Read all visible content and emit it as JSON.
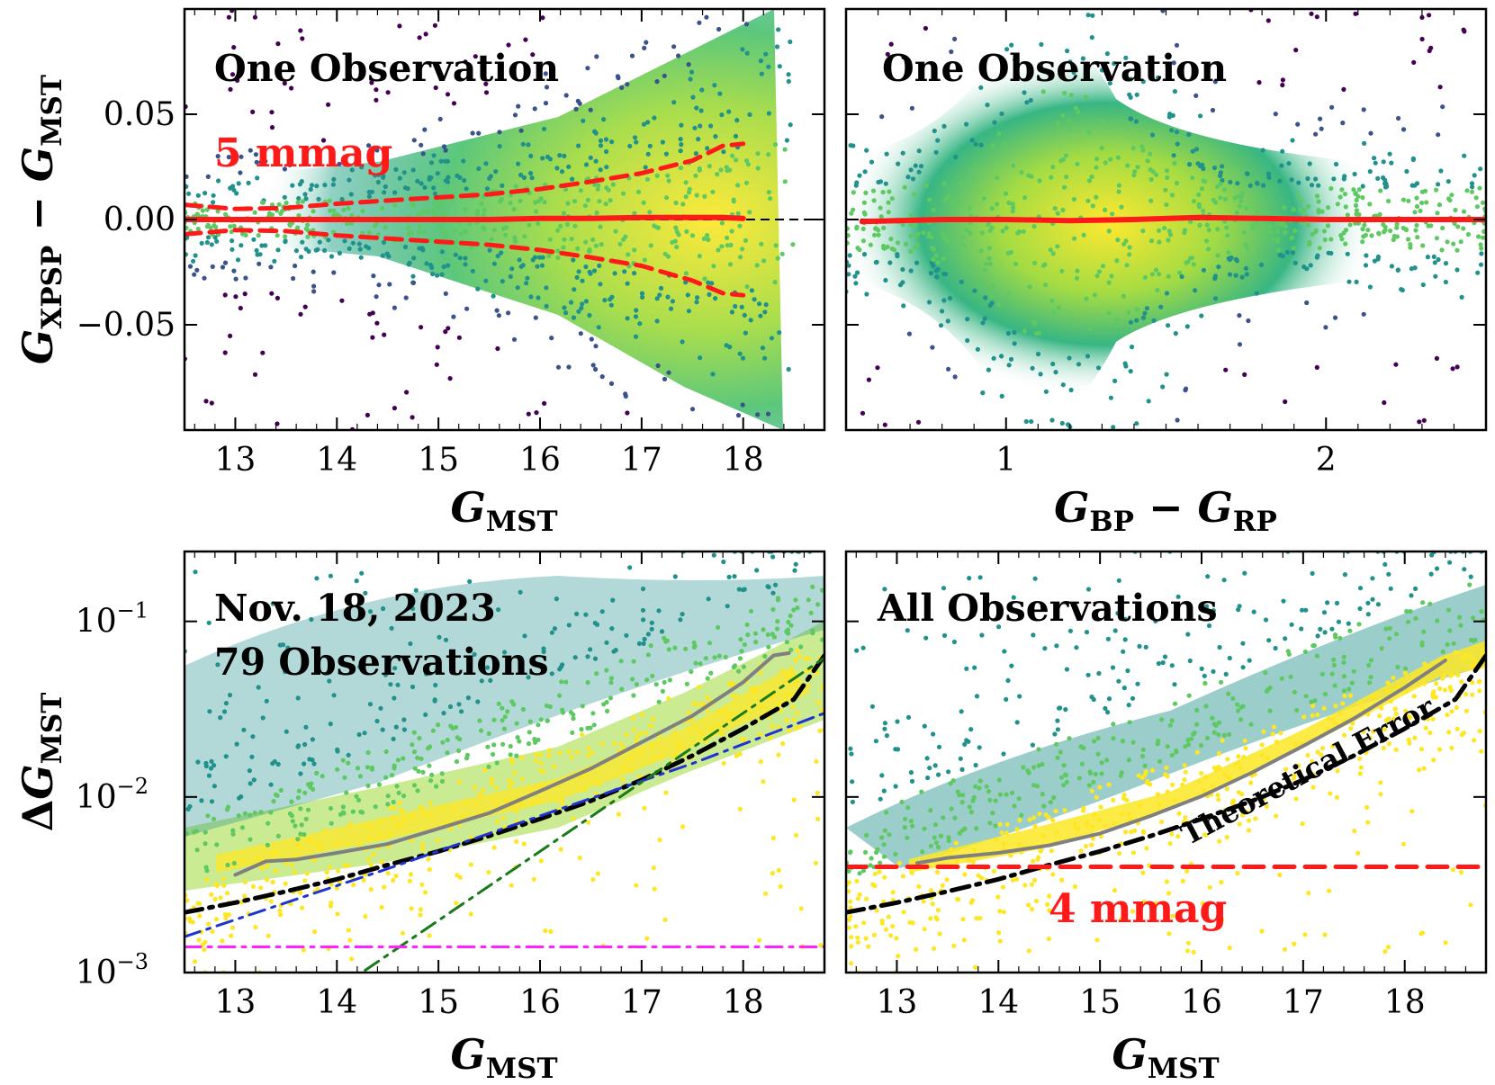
{
  "colors": {
    "median": "#ff1a1a",
    "band": "#ff1a1a",
    "zero": "#000000",
    "theory": "#000000",
    "photon": "#1f33d1",
    "background": "#1a7a1a",
    "floor": "#ff22ff",
    "running": "#808080",
    "ref": "#ff1a1a",
    "density": [
      "#440154",
      "#3b528b",
      "#21918c",
      "#5ec962",
      "#fde725"
    ]
  },
  "chart_data": [
    {
      "id": "a",
      "type": "scatter",
      "annotation": "One Observation",
      "band_label": "5 mmag",
      "xlabel": "G_MST",
      "ylabel": "G_XPSP − G_MST",
      "xlim": [
        12.5,
        18.8
      ],
      "ylim": [
        -0.1,
        0.1
      ],
      "xticks": [
        {
          "v": 13,
          "label": "13"
        },
        {
          "v": 14,
          "label": "14"
        },
        {
          "v": 15,
          "label": "15"
        },
        {
          "v": 16,
          "label": "16"
        },
        {
          "v": 17,
          "label": "17"
        },
        {
          "v": 18,
          "label": "18"
        }
      ],
      "yticks": [
        {
          "v": 0.05,
          "label": "0.05"
        },
        {
          "v": 0.0,
          "label": "0.00"
        },
        {
          "v": -0.05,
          "label": "−0.05"
        }
      ],
      "series": [
        {
          "role": "median",
          "x": [
            12.5,
            13,
            13.5,
            14,
            14.5,
            15,
            15.5,
            16,
            16.5,
            17,
            17.5,
            17.8,
            18.0
          ],
          "y": [
            0.0,
            0.0,
            0.0,
            0.0,
            0.0,
            0.0,
            0.0,
            0.0005,
            0.0005,
            0.001,
            0.001,
            0.001,
            0.0005
          ]
        },
        {
          "role": "upper",
          "x": [
            12.5,
            13,
            13.5,
            14,
            14.5,
            15,
            15.5,
            16,
            16.5,
            17,
            17.5,
            17.8,
            18.0
          ],
          "y": [
            0.007,
            0.005,
            0.0055,
            0.0075,
            0.009,
            0.0105,
            0.012,
            0.0145,
            0.018,
            0.022,
            0.028,
            0.035,
            0.036
          ]
        },
        {
          "role": "lower",
          "x": [
            12.5,
            13,
            13.5,
            14,
            14.5,
            15,
            15.5,
            16,
            16.5,
            17,
            17.5,
            17.8,
            18.0
          ],
          "y": [
            -0.007,
            -0.005,
            -0.0055,
            -0.0075,
            -0.009,
            -0.0105,
            -0.012,
            -0.0145,
            -0.018,
            -0.022,
            -0.029,
            -0.035,
            -0.036
          ]
        }
      ]
    },
    {
      "id": "b",
      "type": "scatter",
      "annotation": "One Observation",
      "xlabel": "G_BP − G_RP",
      "xlim": [
        0.5,
        2.5
      ],
      "ylim": [
        -0.1,
        0.1
      ],
      "xticks": [
        {
          "v": 1,
          "label": "1"
        },
        {
          "v": 2,
          "label": "2"
        }
      ],
      "series": [
        {
          "role": "median",
          "x": [
            0.55,
            0.8,
            1.0,
            1.2,
            1.4,
            1.6,
            1.8,
            2.0,
            2.2,
            2.5
          ],
          "y": [
            -0.001,
            0.0,
            0.0,
            -0.0005,
            0.0,
            0.001,
            0.0005,
            0.0,
            0.0,
            0.0
          ]
        }
      ]
    },
    {
      "id": "c",
      "type": "scatter",
      "annotation": [
        "Nov. 18, 2023",
        "79 Observations"
      ],
      "xlabel": "G_MST",
      "ylabel": "ΔG_MST",
      "yscale": "log",
      "xlim": [
        12.5,
        18.8
      ],
      "ylim": [
        0.001,
        0.25
      ],
      "xticks": [
        {
          "v": 13,
          "label": "13"
        },
        {
          "v": 14,
          "label": "14"
        },
        {
          "v": 15,
          "label": "15"
        },
        {
          "v": 16,
          "label": "16"
        },
        {
          "v": 17,
          "label": "17"
        },
        {
          "v": 18,
          "label": "18"
        }
      ],
      "yticks": [
        {
          "v": 0.1,
          "label": "10",
          "exp": "−1"
        },
        {
          "v": 0.01,
          "label": "10",
          "exp": "−2"
        },
        {
          "v": 0.001,
          "label": "10",
          "exp": "−3"
        }
      ],
      "series": [
        {
          "role": "running",
          "x": [
            13.0,
            13.3,
            13.6,
            14.0,
            14.5,
            15.0,
            15.5,
            16.0,
            16.5,
            17.0,
            17.5,
            18.0,
            18.3,
            18.45
          ],
          "y": [
            0.0036,
            0.0043,
            0.0044,
            0.0048,
            0.0054,
            0.0066,
            0.0081,
            0.0108,
            0.0145,
            0.0205,
            0.029,
            0.045,
            0.064,
            0.066
          ]
        },
        {
          "role": "theory",
          "x": [
            12.5,
            13,
            13.5,
            14,
            14.5,
            15,
            15.5,
            16,
            16.5,
            17,
            17.5,
            18,
            18.5,
            18.8
          ],
          "y": [
            0.0022,
            0.0025,
            0.0029,
            0.0034,
            0.0041,
            0.0049,
            0.006,
            0.0075,
            0.0095,
            0.0125,
            0.0172,
            0.0245,
            0.036,
            0.064
          ]
        },
        {
          "role": "photon",
          "x": [
            12.5,
            13.5,
            14.5,
            15.5,
            16.5,
            17.5,
            18.8
          ],
          "y": [
            0.0016,
            0.0025,
            0.0039,
            0.0062,
            0.0098,
            0.0155,
            0.03
          ]
        },
        {
          "role": "background",
          "x": [
            14.0,
            18.8
          ],
          "y": [
            0.0008,
            0.062
          ]
        },
        {
          "role": "floor",
          "x": [
            12.5,
            18.8
          ],
          "y": [
            0.0014,
            0.0014
          ]
        }
      ]
    },
    {
      "id": "d",
      "type": "scatter",
      "annotation": "All Observations",
      "ref_label": "4 mmag",
      "theory_label": "Theoretical Error",
      "xlabel": "G_MST",
      "yscale": "log",
      "xlim": [
        12.5,
        18.8
      ],
      "ylim": [
        0.001,
        0.25
      ],
      "xticks": [
        {
          "v": 13,
          "label": "13"
        },
        {
          "v": 14,
          "label": "14"
        },
        {
          "v": 15,
          "label": "15"
        },
        {
          "v": 16,
          "label": "16"
        },
        {
          "v": 17,
          "label": "17"
        },
        {
          "v": 18,
          "label": "18"
        }
      ],
      "series": [
        {
          "role": "running",
          "x": [
            13.2,
            13.5,
            14.0,
            14.5,
            15.0,
            15.5,
            16.0,
            16.5,
            17.0,
            17.5,
            18.0,
            18.4
          ],
          "y": [
            0.0042,
            0.0045,
            0.0048,
            0.0053,
            0.0062,
            0.0078,
            0.0101,
            0.0138,
            0.0195,
            0.028,
            0.042,
            0.06
          ]
        },
        {
          "role": "theory",
          "x": [
            12.5,
            13,
            13.5,
            14,
            14.5,
            15,
            15.5,
            16,
            16.5,
            17,
            17.5,
            18,
            18.5,
            18.8
          ],
          "y": [
            0.0022,
            0.0025,
            0.0029,
            0.0034,
            0.0041,
            0.0049,
            0.006,
            0.0075,
            0.0095,
            0.0125,
            0.0172,
            0.0245,
            0.036,
            0.064
          ]
        },
        {
          "role": "ref",
          "x": [
            12.5,
            18.8
          ],
          "y": [
            0.004,
            0.004
          ]
        }
      ]
    }
  ]
}
